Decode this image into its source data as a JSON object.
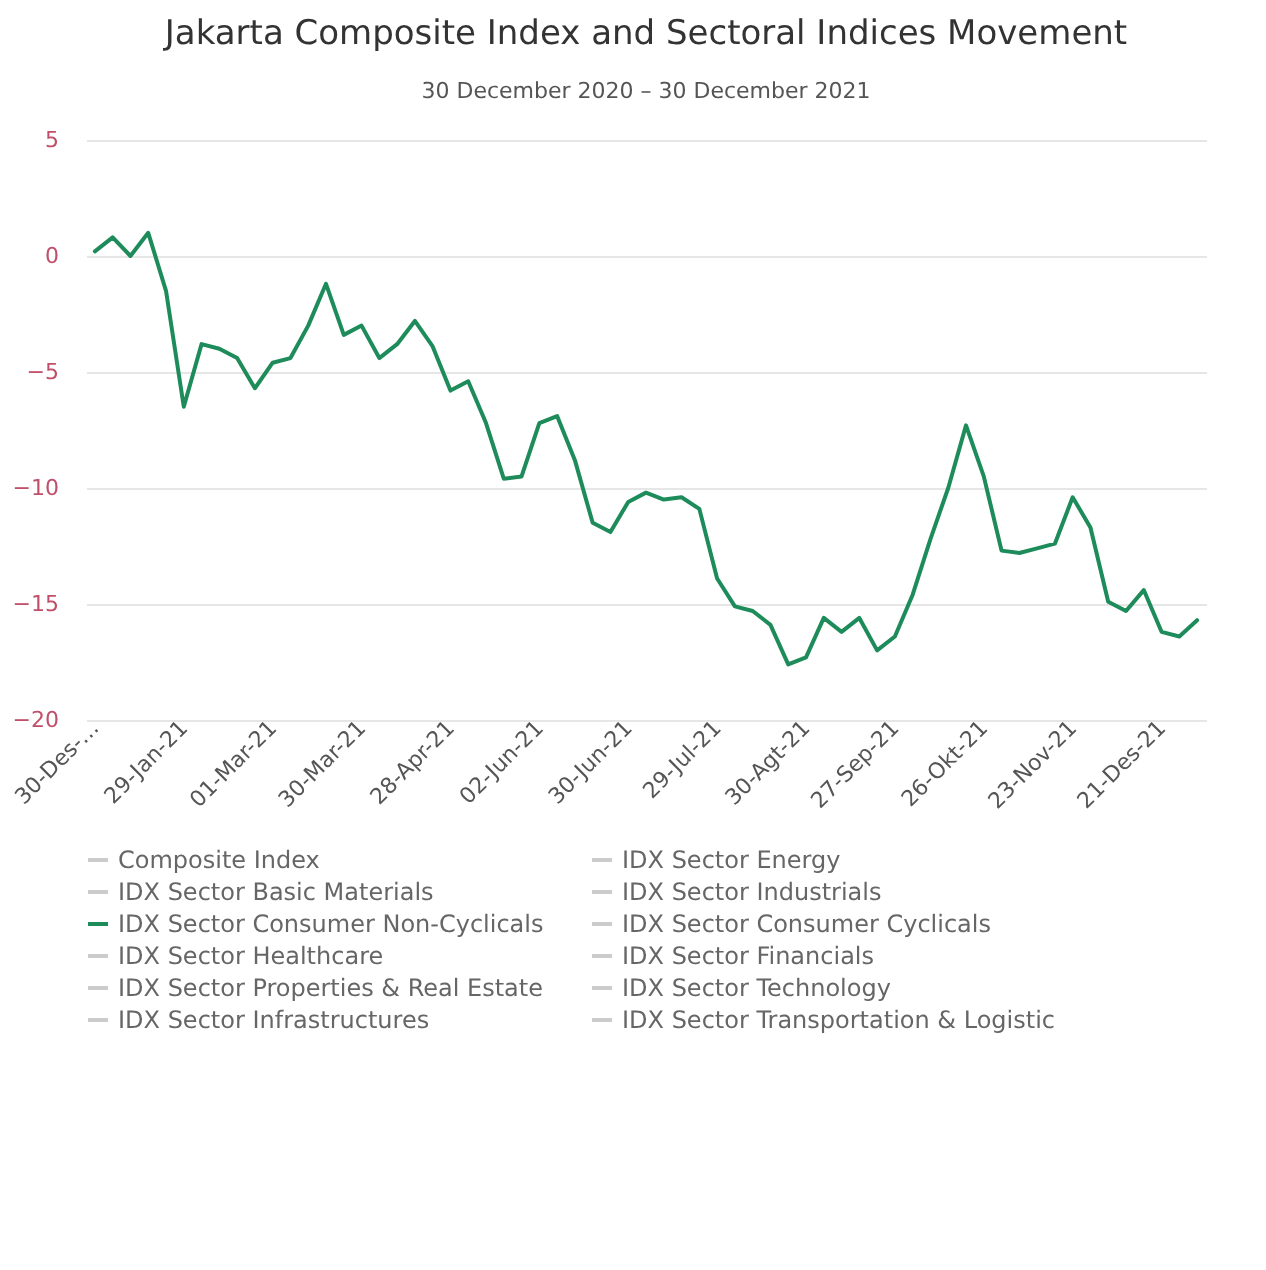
{
  "chart_data": {
    "type": "line",
    "title": "Jakarta Composite Index and Sectoral Indices Movement",
    "subtitle": "30 December 2020 – 30 December 2021",
    "categories": [
      "30-Des-…",
      null,
      null,
      null,
      null,
      "29-Jan-21",
      null,
      null,
      null,
      null,
      "01-Mar-21",
      null,
      null,
      null,
      null,
      "30-Mar-21",
      null,
      null,
      null,
      null,
      "28-Apr-21",
      null,
      null,
      null,
      null,
      "02-Jun-21",
      null,
      null,
      null,
      null,
      "30-Jun-21",
      null,
      null,
      null,
      null,
      "29-Jul-21",
      null,
      null,
      null,
      null,
      "30-Agt-21",
      null,
      null,
      null,
      null,
      "27-Sep-21",
      null,
      null,
      null,
      null,
      "26-Okt-21",
      null,
      null,
      null,
      null,
      "23-Nov-21",
      null,
      null,
      null,
      null,
      "21-Des-21",
      null,
      null
    ],
    "series": [
      {
        "name": "Composite Index",
        "color": "#cccccc",
        "values": [
          null,
          null,
          null,
          null,
          null,
          null,
          null,
          null,
          null,
          null,
          null,
          null,
          null,
          null,
          null,
          null,
          null,
          null,
          null,
          null,
          null,
          null,
          null,
          null,
          null,
          null,
          null,
          null,
          null,
          null,
          null,
          null,
          null,
          null,
          null,
          null,
          null,
          null,
          null,
          null,
          null,
          null,
          null,
          null,
          null,
          null,
          null,
          null,
          null,
          null,
          null,
          null,
          null,
          null,
          null,
          null,
          null,
          null,
          null,
          null,
          null,
          null,
          null
        ]
      },
      {
        "name": "IDX Sector Energy",
        "color": "#cccccc",
        "values": [
          null,
          null,
          null,
          null,
          null,
          null,
          null,
          null,
          null,
          null,
          null,
          null,
          null,
          null,
          null,
          null,
          null,
          null,
          null,
          null,
          null,
          null,
          null,
          null,
          null,
          null,
          null,
          null,
          null,
          null,
          null,
          null,
          null,
          null,
          null,
          null,
          null,
          null,
          null,
          null,
          null,
          null,
          null,
          null,
          null,
          null,
          null,
          null,
          null,
          null,
          null,
          null,
          null,
          null,
          null,
          null,
          null,
          null,
          null,
          null,
          null,
          null,
          null
        ]
      },
      {
        "name": "IDX Sector Basic Materials",
        "color": "#cccccc",
        "values": [
          null,
          null,
          null,
          null,
          null,
          null,
          null,
          null,
          null,
          null,
          null,
          null,
          null,
          null,
          null,
          null,
          null,
          null,
          null,
          null,
          null,
          null,
          null,
          null,
          null,
          null,
          null,
          null,
          null,
          null,
          null,
          null,
          null,
          null,
          null,
          null,
          null,
          null,
          null,
          null,
          null,
          null,
          null,
          null,
          null,
          null,
          null,
          null,
          null,
          null,
          null,
          null,
          null,
          null,
          null,
          null,
          null,
          null,
          null,
          null,
          null,
          null,
          null
        ]
      },
      {
        "name": "IDX Sector Industrials",
        "color": "#cccccc",
        "values": [
          null,
          null,
          null,
          null,
          null,
          null,
          null,
          null,
          null,
          null,
          null,
          null,
          null,
          null,
          null,
          null,
          null,
          null,
          null,
          null,
          null,
          null,
          null,
          null,
          null,
          null,
          null,
          null,
          null,
          null,
          null,
          null,
          null,
          null,
          null,
          null,
          null,
          null,
          null,
          null,
          null,
          null,
          null,
          null,
          null,
          null,
          null,
          null,
          null,
          null,
          null,
          null,
          null,
          null,
          null,
          null,
          null,
          null,
          null,
          null,
          null,
          null,
          null
        ]
      },
      {
        "name": "IDX Sector Consumer Non-Cyclicals",
        "color": "#1e8c5a",
        "values": [
          0.2,
          0.8,
          0.0,
          1.0,
          -1.5,
          -6.5,
          -3.8,
          -4.0,
          -4.4,
          -5.7,
          -4.6,
          -4.4,
          -3.0,
          -1.2,
          -3.4,
          -3.0,
          -4.4,
          -3.8,
          -2.8,
          -3.9,
          -5.8,
          -5.4,
          -7.2,
          -9.6,
          -9.5,
          -7.2,
          -6.9,
          -8.8,
          -11.5,
          -11.9,
          -10.6,
          -10.2,
          -10.5,
          -10.4,
          -10.9,
          -13.9,
          -15.1,
          -15.3,
          -15.9,
          -17.6,
          -17.3,
          -15.6,
          -16.2,
          -15.6,
          -17.0,
          -16.4,
          -14.6,
          -12.2,
          -10.0,
          -7.3,
          -9.5,
          -12.7,
          -12.8,
          -12.6,
          -12.4,
          -10.4,
          -11.7,
          -14.9,
          -15.3,
          -14.4,
          -16.2,
          -16.4,
          -15.7
        ]
      },
      {
        "name": "IDX Sector Consumer Cyclicals",
        "color": "#cccccc",
        "values": [
          null,
          null,
          null,
          null,
          null,
          null,
          null,
          null,
          null,
          null,
          null,
          null,
          null,
          null,
          null,
          null,
          null,
          null,
          null,
          null,
          null,
          null,
          null,
          null,
          null,
          null,
          null,
          null,
          null,
          null,
          null,
          null,
          null,
          null,
          null,
          null,
          null,
          null,
          null,
          null,
          null,
          null,
          null,
          null,
          null,
          null,
          null,
          null,
          null,
          null,
          null,
          null,
          null,
          null,
          null,
          null,
          null,
          null,
          null,
          null,
          null,
          null,
          null
        ]
      },
      {
        "name": "IDX Sector Healthcare",
        "color": "#cccccc",
        "values": [
          null,
          null,
          null,
          null,
          null,
          null,
          null,
          null,
          null,
          null,
          null,
          null,
          null,
          null,
          null,
          null,
          null,
          null,
          null,
          null,
          null,
          null,
          null,
          null,
          null,
          null,
          null,
          null,
          null,
          null,
          null,
          null,
          null,
          null,
          null,
          null,
          null,
          null,
          null,
          null,
          null,
          null,
          null,
          null,
          null,
          null,
          null,
          null,
          null,
          null,
          null,
          null,
          null,
          null,
          null,
          null,
          null,
          null,
          null,
          null,
          null,
          null,
          null
        ]
      },
      {
        "name": "IDX Sector Financials",
        "color": "#cccccc",
        "values": [
          null,
          null,
          null,
          null,
          null,
          null,
          null,
          null,
          null,
          null,
          null,
          null,
          null,
          null,
          null,
          null,
          null,
          null,
          null,
          null,
          null,
          null,
          null,
          null,
          null,
          null,
          null,
          null,
          null,
          null,
          null,
          null,
          null,
          null,
          null,
          null,
          null,
          null,
          null,
          null,
          null,
          null,
          null,
          null,
          null,
          null,
          null,
          null,
          null,
          null,
          null,
          null,
          null,
          null,
          null,
          null,
          null,
          null,
          null,
          null,
          null,
          null,
          null
        ]
      },
      {
        "name": "IDX Sector Properties & Real Estate",
        "color": "#cccccc",
        "values": [
          null,
          null,
          null,
          null,
          null,
          null,
          null,
          null,
          null,
          null,
          null,
          null,
          null,
          null,
          null,
          null,
          null,
          null,
          null,
          null,
          null,
          null,
          null,
          null,
          null,
          null,
          null,
          null,
          null,
          null,
          null,
          null,
          null,
          null,
          null,
          null,
          null,
          null,
          null,
          null,
          null,
          null,
          null,
          null,
          null,
          null,
          null,
          null,
          null,
          null,
          null,
          null,
          null,
          null,
          null,
          null,
          null,
          null,
          null,
          null,
          null,
          null,
          null
        ]
      },
      {
        "name": "IDX Sector Technology",
        "color": "#cccccc",
        "values": [
          null,
          null,
          null,
          null,
          null,
          null,
          null,
          null,
          null,
          null,
          null,
          null,
          null,
          null,
          null,
          null,
          null,
          null,
          null,
          null,
          null,
          null,
          null,
          null,
          null,
          null,
          null,
          null,
          null,
          null,
          null,
          null,
          null,
          null,
          null,
          null,
          null,
          null,
          null,
          null,
          null,
          null,
          null,
          null,
          null,
          null,
          null,
          null,
          null,
          null,
          null,
          null,
          null,
          null,
          null,
          null,
          null,
          null,
          null,
          null,
          null,
          null,
          null
        ]
      },
      {
        "name": "IDX Sector Infrastructures",
        "color": "#cccccc",
        "values": [
          null,
          null,
          null,
          null,
          null,
          null,
          null,
          null,
          null,
          null,
          null,
          null,
          null,
          null,
          null,
          null,
          null,
          null,
          null,
          null,
          null,
          null,
          null,
          null,
          null,
          null,
          null,
          null,
          null,
          null,
          null,
          null,
          null,
          null,
          null,
          null,
          null,
          null,
          null,
          null,
          null,
          null,
          null,
          null,
          null,
          null,
          null,
          null,
          null,
          null,
          null,
          null,
          null,
          null,
          null,
          null,
          null,
          null,
          null,
          null,
          null,
          null,
          null
        ]
      },
      {
        "name": "IDX Sector Transportation & Logistic",
        "color": "#cccccc",
        "values": [
          null,
          null,
          null,
          null,
          null,
          null,
          null,
          null,
          null,
          null,
          null,
          null,
          null,
          null,
          null,
          null,
          null,
          null,
          null,
          null,
          null,
          null,
          null,
          null,
          null,
          null,
          null,
          null,
          null,
          null,
          null,
          null,
          null,
          null,
          null,
          null,
          null,
          null,
          null,
          null,
          null,
          null,
          null,
          null,
          null,
          null,
          null,
          null,
          null,
          null,
          null,
          null,
          null,
          null,
          null,
          null,
          null,
          null,
          null,
          null,
          null,
          null,
          null
        ]
      }
    ],
    "ylim": [
      -20,
      5
    ],
    "yticks": [
      -20,
      -15,
      -10,
      -5,
      0,
      5
    ],
    "grid": "y",
    "legend": "bottom",
    "line_style": "solid",
    "marker": "none"
  }
}
